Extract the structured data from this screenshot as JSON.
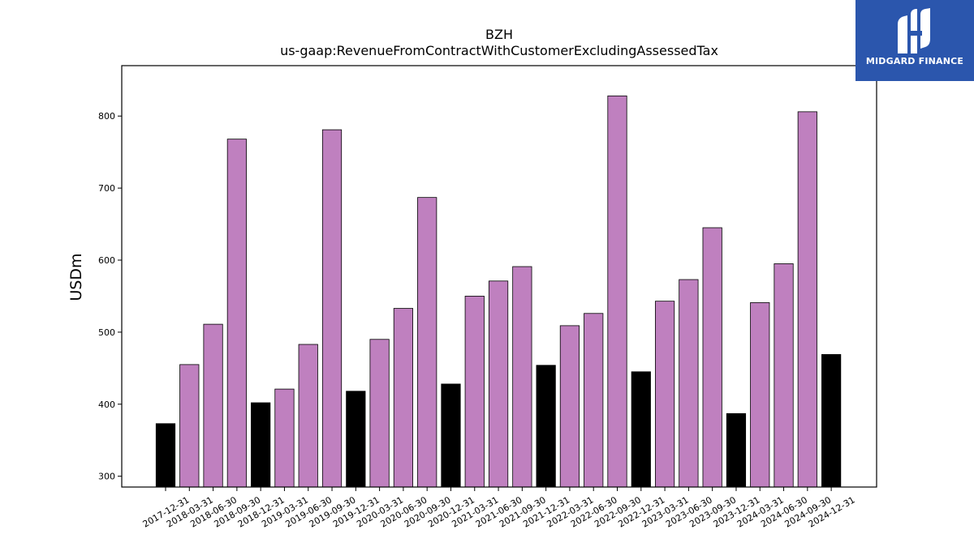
{
  "logo": {
    "text": "MIDGARD FINANCE",
    "icon": "midgard-m-logo-icon",
    "background": "#2b56ad"
  },
  "chart_data": {
    "type": "bar",
    "title": "BZH",
    "subtitle": "us-gaap:RevenueFromContractWithCustomerExcludingAssessedTax",
    "xlabel": "",
    "ylabel": "USDm",
    "ylim": [
      285,
      870
    ],
    "yticks": [
      300,
      400,
      500,
      600,
      700,
      800
    ],
    "grid": false,
    "colors": {
      "quarter": "#bf80bf",
      "year_end": "#000000",
      "edge": "#000000"
    },
    "categories": [
      "2017-12-31",
      "2018-03-31",
      "2018-06-30",
      "2018-09-30",
      "2018-12-31",
      "2019-03-31",
      "2019-06-30",
      "2019-09-30",
      "2019-12-31",
      "2020-03-31",
      "2020-06-30",
      "2020-09-30",
      "2020-12-31",
      "2021-03-31",
      "2021-06-30",
      "2021-09-30",
      "2021-12-31",
      "2022-03-31",
      "2022-06-30",
      "2022-09-30",
      "2022-12-31",
      "2023-03-31",
      "2023-06-30",
      "2023-09-30",
      "2023-12-31",
      "2024-03-31",
      "2024-06-30",
      "2024-09-30",
      "2024-12-31"
    ],
    "values": [
      373,
      455,
      511,
      768,
      402,
      421,
      483,
      781,
      418,
      490,
      533,
      687,
      428,
      550,
      571,
      591,
      454,
      509,
      526,
      828,
      445,
      543,
      573,
      645,
      387,
      541,
      595,
      806,
      469
    ],
    "highlight": [
      true,
      false,
      false,
      false,
      true,
      false,
      false,
      false,
      true,
      false,
      false,
      false,
      true,
      false,
      false,
      false,
      true,
      false,
      false,
      false,
      true,
      false,
      false,
      false,
      true,
      false,
      false,
      false,
      true
    ]
  }
}
